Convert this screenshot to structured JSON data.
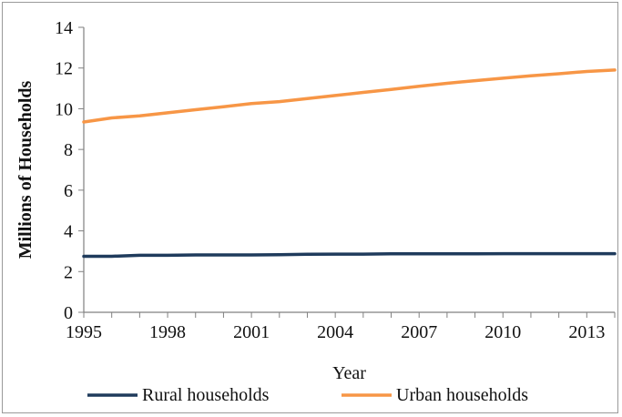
{
  "chart_data": {
    "type": "line",
    "title": "",
    "xlabel": "Year",
    "ylabel": "Millions of Households",
    "x": [
      1995,
      1996,
      1997,
      1998,
      1999,
      2000,
      2001,
      2002,
      2003,
      2004,
      2005,
      2006,
      2007,
      2008,
      2009,
      2010,
      2011,
      2012,
      2013,
      2014
    ],
    "x_ticks": [
      "1995",
      "1998",
      "2001",
      "2004",
      "2007",
      "2010",
      "2013"
    ],
    "y_ticks": [
      "0",
      "2",
      "4",
      "6",
      "8",
      "10",
      "12",
      "14"
    ],
    "ylim": [
      0,
      14
    ],
    "xlim": [
      1995,
      2014
    ],
    "grid": false,
    "legend_position": "bottom",
    "series": [
      {
        "name": "Rural households",
        "color": "#1f3b5c",
        "values": [
          2.75,
          2.75,
          2.8,
          2.8,
          2.82,
          2.82,
          2.82,
          2.83,
          2.85,
          2.86,
          2.86,
          2.87,
          2.87,
          2.87,
          2.87,
          2.88,
          2.88,
          2.88,
          2.88,
          2.88
        ]
      },
      {
        "name": "Urban households",
        "color": "#f79646",
        "values": [
          9.35,
          9.55,
          9.65,
          9.8,
          9.95,
          10.1,
          10.25,
          10.35,
          10.5,
          10.65,
          10.8,
          10.95,
          11.1,
          11.25,
          11.38,
          11.5,
          11.62,
          11.72,
          11.83,
          11.9
        ]
      }
    ]
  }
}
